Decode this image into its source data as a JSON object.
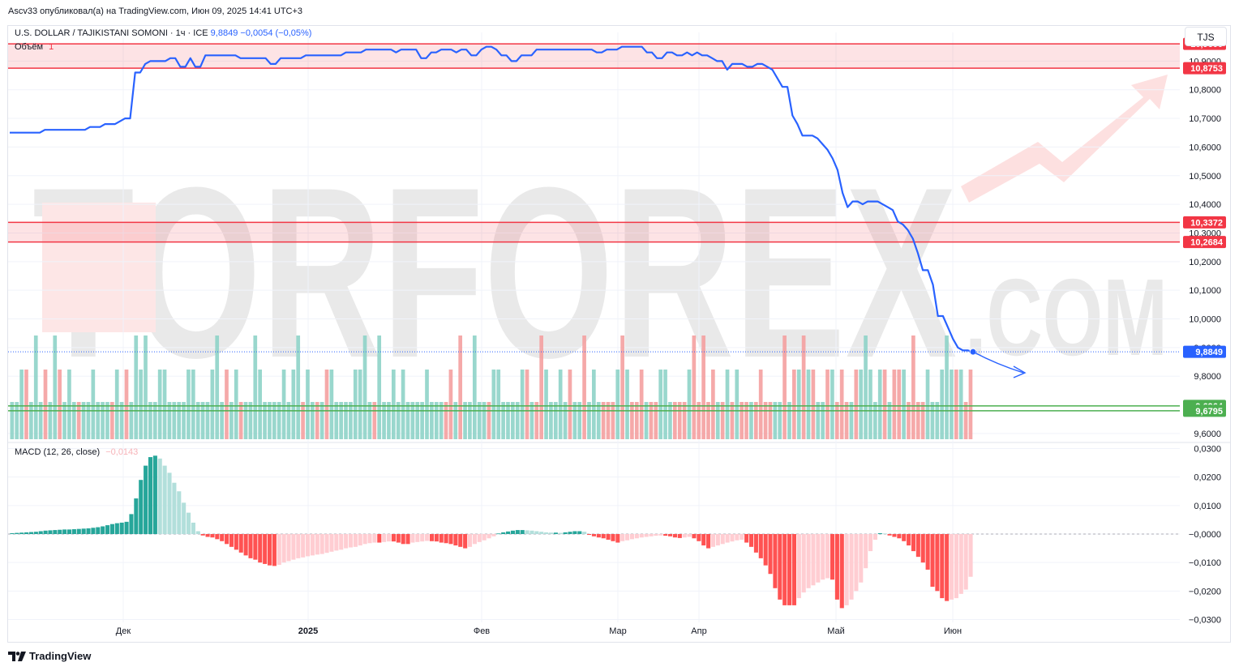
{
  "header": {
    "published": "Ascv33 опубликовал(а) на TradingView.com, Июн 09, 2025 14:41 UTC+3"
  },
  "legend": {
    "symbol": "U.S. DOLLAR / TAJIKISTANI SOMONI · 1ч · ICE",
    "price": "9,8849",
    "change": "−0,0054 (−0,05%)",
    "volume_label": "Объём",
    "volume_value": "1",
    "macd_label": "MACD (12, 26, close)",
    "macd_value": "−0,0143"
  },
  "currency_button": "TJS",
  "footer_logo": "TradingView",
  "watermark": {
    "main": "TORFOREX",
    "sub": ".COM"
  },
  "colors": {
    "line": "#2962ff",
    "resistance": "#f23645",
    "support": "#4caf50",
    "vol_up": "#8ed3c8",
    "vol_down": "#f4a0a0",
    "macd_up_strong": "#26a69a",
    "macd_up_weak": "#b2dfdb",
    "macd_down_strong": "#ff5252",
    "macd_down_weak": "#ffcdd2"
  },
  "chart_data": {
    "type": "line",
    "x_axis_labels": [
      "Дек",
      "2025",
      "Фев",
      "Мар",
      "Апр",
      "Май",
      "Июн"
    ],
    "price_axis_ticks": [
      "10,9000",
      "10,8000",
      "10,7000",
      "10,6000",
      "10,5000",
      "10,4000",
      "10,3000",
      "10,2000",
      "10,1000",
      "10,0000",
      "9,9000",
      "9,8000",
      "9,6000"
    ],
    "price_ylim": [
      9.58,
      11.0
    ],
    "series": [
      {
        "values": [
          10.65,
          10.65,
          10.65,
          10.65,
          10.65,
          10.65,
          10.65,
          10.66,
          10.66,
          10.66,
          10.66,
          10.66,
          10.66,
          10.66,
          10.66,
          10.66,
          10.67,
          10.67,
          10.67,
          10.68,
          10.68,
          10.68,
          10.69,
          10.7,
          10.7,
          10.86,
          10.86,
          10.89,
          10.9,
          10.9,
          10.9,
          10.9,
          10.91,
          10.91,
          10.88,
          10.88,
          10.91,
          10.88,
          10.88,
          10.92,
          10.92,
          10.92,
          10.92,
          10.92,
          10.92,
          10.92,
          10.91,
          10.91,
          10.91,
          10.91,
          10.91,
          10.91,
          10.89,
          10.89,
          10.91,
          10.91,
          10.91,
          10.91,
          10.91,
          10.92,
          10.92,
          10.92,
          10.92,
          10.92,
          10.92,
          10.92,
          10.92,
          10.93,
          10.93,
          10.93,
          10.93,
          10.94,
          10.94,
          10.94,
          10.94,
          10.94,
          10.94,
          10.93,
          10.94,
          10.94,
          10.94,
          10.94,
          10.91,
          10.91,
          10.93,
          10.93,
          10.94,
          10.94,
          10.94,
          10.93,
          10.94,
          10.94,
          10.92,
          10.92,
          10.94,
          10.95,
          10.95,
          10.94,
          10.92,
          10.92,
          10.9,
          10.9,
          10.92,
          10.92,
          10.92,
          10.94,
          10.94,
          10.94,
          10.94,
          10.94,
          10.94,
          10.94,
          10.94,
          10.94,
          10.94,
          10.94,
          10.94,
          10.93,
          10.93,
          10.94,
          10.94,
          10.94,
          10.95,
          10.95,
          10.95,
          10.95,
          10.95,
          10.93,
          10.93,
          10.91,
          10.91,
          10.93,
          10.93,
          10.92,
          10.92,
          10.93,
          10.92,
          10.93,
          10.92,
          10.92,
          10.91,
          10.9,
          10.9,
          10.87,
          10.89,
          10.89,
          10.89,
          10.88,
          10.88,
          10.89,
          10.89,
          10.88,
          10.87,
          10.84,
          10.81,
          10.81,
          10.71,
          10.68,
          10.64,
          10.64,
          10.64,
          10.63,
          10.61,
          10.59,
          10.56,
          10.52,
          10.44,
          10.39,
          10.41,
          10.41,
          10.4,
          10.41,
          10.41,
          10.41,
          10.4,
          10.39,
          10.38,
          10.34,
          10.33,
          10.31,
          10.28,
          10.23,
          10.17,
          10.17,
          10.12,
          10.01,
          10.01,
          9.97,
          9.93,
          9.9,
          9.89,
          9.89,
          9.885
        ]
      }
    ],
    "last_price_label": "9,8849",
    "horizontal_levels": [
      {
        "label": "10,9600",
        "value": 10.96,
        "kind": "resistance"
      },
      {
        "label": "10,8753",
        "value": 10.8753,
        "kind": "resistance"
      },
      {
        "label": "10,3372",
        "value": 10.3372,
        "kind": "resistance"
      },
      {
        "label": "10,2684",
        "value": 10.2684,
        "kind": "resistance"
      },
      {
        "label": "9,6964",
        "value": 9.6964,
        "kind": "support"
      },
      {
        "label": "9,6795",
        "value": 9.6795,
        "kind": "support"
      }
    ],
    "volume_pattern": "0001000100100010000001001000000000000000000001001000000000000100101000000000100000000000000110100000100000001011000001001000111010111011000111011111010101101111001010101001011101000001011011110000001011",
    "macd": {
      "axis_ticks": [
        "0,0300",
        "0,0200",
        "0,0100",
        "−0,0000",
        "−0,0100",
        "−0,0200",
        "−0,0300"
      ],
      "ylim": [
        -0.031,
        0.031
      ],
      "values": [
        0.0003,
        0.0004,
        0.0005,
        0.0006,
        0.0007,
        0.0008,
        0.001,
        0.0012,
        0.0013,
        0.0014,
        0.0015,
        0.0016,
        0.0016,
        0.0017,
        0.0018,
        0.0019,
        0.002,
        0.0022,
        0.0024,
        0.0027,
        0.0031,
        0.0035,
        0.0038,
        0.004,
        0.0043,
        0.007,
        0.0125,
        0.019,
        0.024,
        0.027,
        0.0275,
        0.0265,
        0.024,
        0.0215,
        0.018,
        0.015,
        0.011,
        0.0075,
        0.004,
        0.001,
        -0.0005,
        -0.001,
        -0.0012,
        -0.0018,
        -0.0025,
        -0.0035,
        -0.0045,
        -0.0055,
        -0.0065,
        -0.0075,
        -0.0085,
        -0.009,
        -0.01,
        -0.0105,
        -0.011,
        -0.0112,
        -0.0108,
        -0.01,
        -0.0095,
        -0.009,
        -0.0085,
        -0.0082,
        -0.0078,
        -0.0075,
        -0.0072,
        -0.007,
        -0.0066,
        -0.0062,
        -0.0058,
        -0.0055,
        -0.005,
        -0.0047,
        -0.0045,
        -0.004,
        -0.0035,
        -0.0032,
        -0.003,
        -0.003,
        -0.0028,
        -0.0026,
        -0.0026,
        -0.003,
        -0.0035,
        -0.0035,
        -0.003,
        -0.0028,
        -0.0026,
        -0.0024,
        -0.0025,
        -0.0026,
        -0.003,
        -0.0032,
        -0.0035,
        -0.004,
        -0.0045,
        -0.005,
        -0.0045,
        -0.0035,
        -0.0028,
        -0.0022,
        -0.0015,
        -0.0008,
        0.0002,
        0.0006,
        0.0009,
        0.0012,
        0.0014,
        0.0014,
        0.0013,
        0.0012,
        0.001,
        0.0008,
        0.0006,
        0.0005,
        0.0005,
        0.0004,
        0.0006,
        0.0008,
        0.001,
        0.001,
        0.0008,
        -0.0003,
        -0.0008,
        -0.0012,
        -0.0015,
        -0.002,
        -0.0025,
        -0.003,
        -0.0025,
        -0.0022,
        -0.0018,
        -0.0015,
        -0.0012,
        -0.001,
        -0.0008,
        -0.0006,
        -0.0005,
        -0.0006,
        -0.0008,
        -0.0012,
        -0.0014,
        -0.0012,
        -0.001,
        -0.0015,
        -0.0025,
        -0.004,
        -0.005,
        -0.0045,
        -0.004,
        -0.0035,
        -0.003,
        -0.0026,
        -0.0022,
        -0.002,
        -0.003,
        -0.0045,
        -0.0065,
        -0.0085,
        -0.011,
        -0.014,
        -0.019,
        -0.023,
        -0.025,
        -0.025,
        -0.025,
        -0.0225,
        -0.0205,
        -0.019,
        -0.018,
        -0.017,
        -0.016,
        -0.0155,
        -0.016,
        -0.023,
        -0.026,
        -0.025,
        -0.023,
        -0.02,
        -0.017,
        -0.012,
        -0.006,
        -0.002,
        0.0003,
        0.0002,
        -0.0005,
        -0.001,
        -0.0015,
        -0.0025,
        -0.004,
        -0.006,
        -0.008,
        -0.01,
        -0.0125,
        -0.0185,
        -0.02,
        -0.0225,
        -0.0235,
        -0.023,
        -0.0225,
        -0.021,
        -0.0195,
        -0.015
      ]
    }
  }
}
